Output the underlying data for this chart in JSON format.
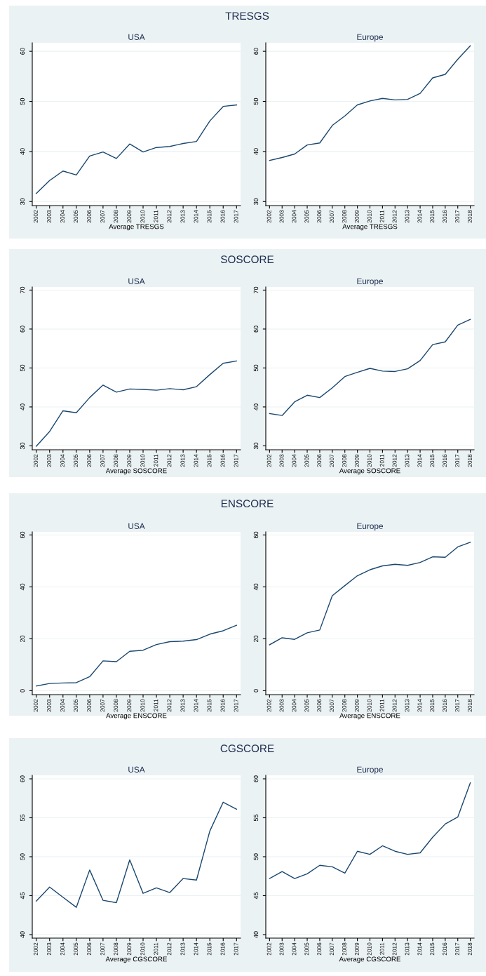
{
  "chart_data": [
    {
      "type": "line",
      "title": "TRESGS",
      "subtitle": "USA",
      "xlabel": "Average TRESGS",
      "x": [
        2002,
        2003,
        2004,
        2005,
        2006,
        2007,
        2008,
        2009,
        2010,
        2011,
        2012,
        2013,
        2014,
        2015,
        2016,
        2017
      ],
      "series": [
        {
          "color": "#1a476f",
          "values": [
            31.6,
            34.2,
            36.1,
            35.3,
            39.1,
            39.9,
            38.6,
            41.5,
            39.9,
            40.8,
            41.0,
            41.6,
            42.0,
            46.1,
            49.0,
            49.3
          ]
        }
      ],
      "xlim": [
        2001.7,
        2017.3
      ],
      "xticks": [
        2002,
        2003,
        2004,
        2005,
        2006,
        2007,
        2008,
        2009,
        2010,
        2011,
        2012,
        2013,
        2014,
        2015,
        2016,
        2017
      ],
      "ylim": [
        29.2,
        61.7
      ],
      "yticks": [
        30,
        40,
        50,
        60
      ],
      "grid": "y",
      "marker": "none",
      "line_style": "solid"
    },
    {
      "type": "line",
      "subtitle": "Europe",
      "xlabel": "Average TRESGS",
      "x": [
        2002,
        2003,
        2004,
        2005,
        2006,
        2007,
        2008,
        2009,
        2010,
        2011,
        2012,
        2013,
        2014,
        2015,
        2016,
        2017,
        2018
      ],
      "series": [
        {
          "color": "#1a476f",
          "values": [
            38.2,
            38.8,
            39.5,
            41.3,
            41.7,
            45.2,
            47.1,
            49.3,
            50.1,
            50.6,
            50.3,
            50.4,
            51.6,
            54.7,
            55.4,
            58.4,
            61.1
          ]
        }
      ],
      "xlim": [
        2001.7,
        2018.3
      ],
      "xticks": [
        2002,
        2003,
        2004,
        2005,
        2006,
        2007,
        2008,
        2009,
        2010,
        2011,
        2012,
        2013,
        2014,
        2015,
        2016,
        2017,
        2018
      ],
      "ylim": [
        29.2,
        61.7
      ],
      "yticks": [
        30,
        40,
        50,
        60
      ],
      "grid": "y",
      "marker": "none",
      "line_style": "solid"
    },
    {
      "type": "line",
      "title": "SOSCORE",
      "subtitle": "USA",
      "xlabel": "Average SOSCORE",
      "x": [
        2002,
        2003,
        2004,
        2005,
        2006,
        2007,
        2008,
        2009,
        2010,
        2011,
        2012,
        2013,
        2014,
        2015,
        2016,
        2017
      ],
      "series": [
        {
          "color": "#1a476f",
          "values": [
            29.9,
            33.7,
            39.0,
            38.5,
            42.4,
            45.6,
            43.8,
            44.6,
            44.5,
            44.3,
            44.7,
            44.4,
            45.2,
            48.3,
            51.2,
            51.8
          ]
        }
      ],
      "xlim": [
        2001.7,
        2017.3
      ],
      "xticks": [
        2002,
        2003,
        2004,
        2005,
        2006,
        2007,
        2008,
        2009,
        2010,
        2011,
        2012,
        2013,
        2014,
        2015,
        2016,
        2017
      ],
      "ylim": [
        29.0,
        70.8
      ],
      "yticks": [
        30,
        40,
        50,
        60,
        70
      ],
      "grid": "y",
      "marker": "none",
      "line_style": "solid"
    },
    {
      "type": "line",
      "subtitle": "Europe",
      "xlabel": "Average SOSCORE",
      "x": [
        2002,
        2003,
        2004,
        2005,
        2006,
        2007,
        2008,
        2009,
        2010,
        2011,
        2012,
        2013,
        2014,
        2015,
        2016,
        2017,
        2018
      ],
      "series": [
        {
          "color": "#1a476f",
          "values": [
            38.3,
            37.8,
            41.3,
            43.0,
            42.4,
            44.9,
            47.8,
            48.9,
            49.9,
            49.2,
            49.1,
            49.8,
            51.9,
            56.0,
            56.7,
            61.0,
            62.5
          ]
        }
      ],
      "xlim": [
        2001.7,
        2018.3
      ],
      "xticks": [
        2002,
        2003,
        2004,
        2005,
        2006,
        2007,
        2008,
        2009,
        2010,
        2011,
        2012,
        2013,
        2014,
        2015,
        2016,
        2017,
        2018
      ],
      "ylim": [
        29.0,
        70.8
      ],
      "yticks": [
        30,
        40,
        50,
        60,
        70
      ],
      "grid": "y",
      "marker": "none",
      "line_style": "solid"
    },
    {
      "type": "line",
      "title": "ENSCORE",
      "subtitle": "USA",
      "xlabel": "Average ENSCORE",
      "x": [
        2002,
        2003,
        2004,
        2005,
        2006,
        2007,
        2008,
        2009,
        2010,
        2011,
        2012,
        2013,
        2014,
        2015,
        2016,
        2017
      ],
      "series": [
        {
          "color": "#1a476f",
          "values": [
            1.8,
            2.8,
            3.0,
            3.1,
            5.4,
            11.5,
            11.2,
            15.2,
            15.6,
            17.8,
            18.9,
            19.1,
            19.7,
            21.8,
            23.1,
            25.2
          ]
        }
      ],
      "xlim": [
        2001.7,
        2017.3
      ],
      "xticks": [
        2002,
        2003,
        2004,
        2005,
        2006,
        2007,
        2008,
        2009,
        2010,
        2011,
        2012,
        2013,
        2014,
        2015,
        2016,
        2017
      ],
      "ylim": [
        -1.5,
        61.2
      ],
      "yticks": [
        0,
        20,
        40,
        60
      ],
      "grid": "y",
      "marker": "none",
      "line_style": "solid"
    },
    {
      "type": "line",
      "subtitle": "Europe",
      "xlabel": "Average ENSCORE",
      "x": [
        2002,
        2003,
        2004,
        2005,
        2006,
        2007,
        2008,
        2009,
        2010,
        2011,
        2012,
        2013,
        2014,
        2015,
        2016,
        2017,
        2018
      ],
      "series": [
        {
          "color": "#1a476f",
          "values": [
            17.7,
            20.4,
            19.8,
            22.3,
            23.4,
            36.6,
            40.5,
            44.3,
            46.6,
            48.1,
            48.7,
            48.3,
            49.4,
            51.6,
            51.4,
            55.4,
            57.2
          ]
        }
      ],
      "xlim": [
        2001.7,
        2018.3
      ],
      "xticks": [
        2002,
        2003,
        2004,
        2005,
        2006,
        2007,
        2008,
        2009,
        2010,
        2011,
        2012,
        2013,
        2014,
        2015,
        2016,
        2017,
        2018
      ],
      "ylim": [
        -1.5,
        61.2
      ],
      "yticks": [
        0,
        20,
        40,
        60
      ],
      "grid": "y",
      "marker": "none",
      "line_style": "solid"
    },
    {
      "type": "line",
      "title": "CGSCORE",
      "subtitle": "USA",
      "xlabel": "Average CGSCORE",
      "x": [
        2002,
        2003,
        2004,
        2005,
        2006,
        2007,
        2008,
        2009,
        2010,
        2011,
        2012,
        2013,
        2014,
        2015,
        2016,
        2017
      ],
      "series": [
        {
          "color": "#1a476f",
          "values": [
            44.3,
            46.1,
            44.8,
            43.5,
            48.3,
            44.4,
            44.1,
            49.6,
            45.3,
            46.0,
            45.4,
            47.2,
            47.0,
            53.3,
            57.0,
            56.1
          ]
        }
      ],
      "xlim": [
        2001.7,
        2017.3
      ],
      "xticks": [
        2002,
        2003,
        2004,
        2005,
        2006,
        2007,
        2008,
        2009,
        2010,
        2011,
        2012,
        2013,
        2014,
        2015,
        2016,
        2017
      ],
      "ylim": [
        39.55,
        60.45
      ],
      "yticks": [
        40,
        45,
        50,
        55,
        60
      ],
      "grid": "y",
      "marker": "none",
      "line_style": "solid"
    },
    {
      "type": "line",
      "subtitle": "Europe",
      "xlabel": "Average CGSCORE",
      "x": [
        2002,
        2003,
        2004,
        2005,
        2006,
        2007,
        2008,
        2009,
        2010,
        2011,
        2012,
        2013,
        2014,
        2015,
        2016,
        2017,
        2018
      ],
      "series": [
        {
          "color": "#1a476f",
          "values": [
            47.2,
            48.1,
            47.2,
            47.8,
            48.9,
            48.7,
            47.9,
            50.7,
            50.3,
            51.4,
            50.7,
            50.3,
            50.5,
            52.5,
            54.2,
            55.1,
            59.5
          ]
        }
      ],
      "xlim": [
        2001.7,
        2018.3
      ],
      "xticks": [
        2002,
        2003,
        2004,
        2005,
        2006,
        2007,
        2008,
        2009,
        2010,
        2011,
        2012,
        2013,
        2014,
        2015,
        2016,
        2017,
        2018
      ],
      "ylim": [
        39.55,
        60.45
      ],
      "yticks": [
        40,
        45,
        50,
        55,
        60
      ],
      "grid": "y",
      "marker": "none",
      "line_style": "solid"
    }
  ]
}
